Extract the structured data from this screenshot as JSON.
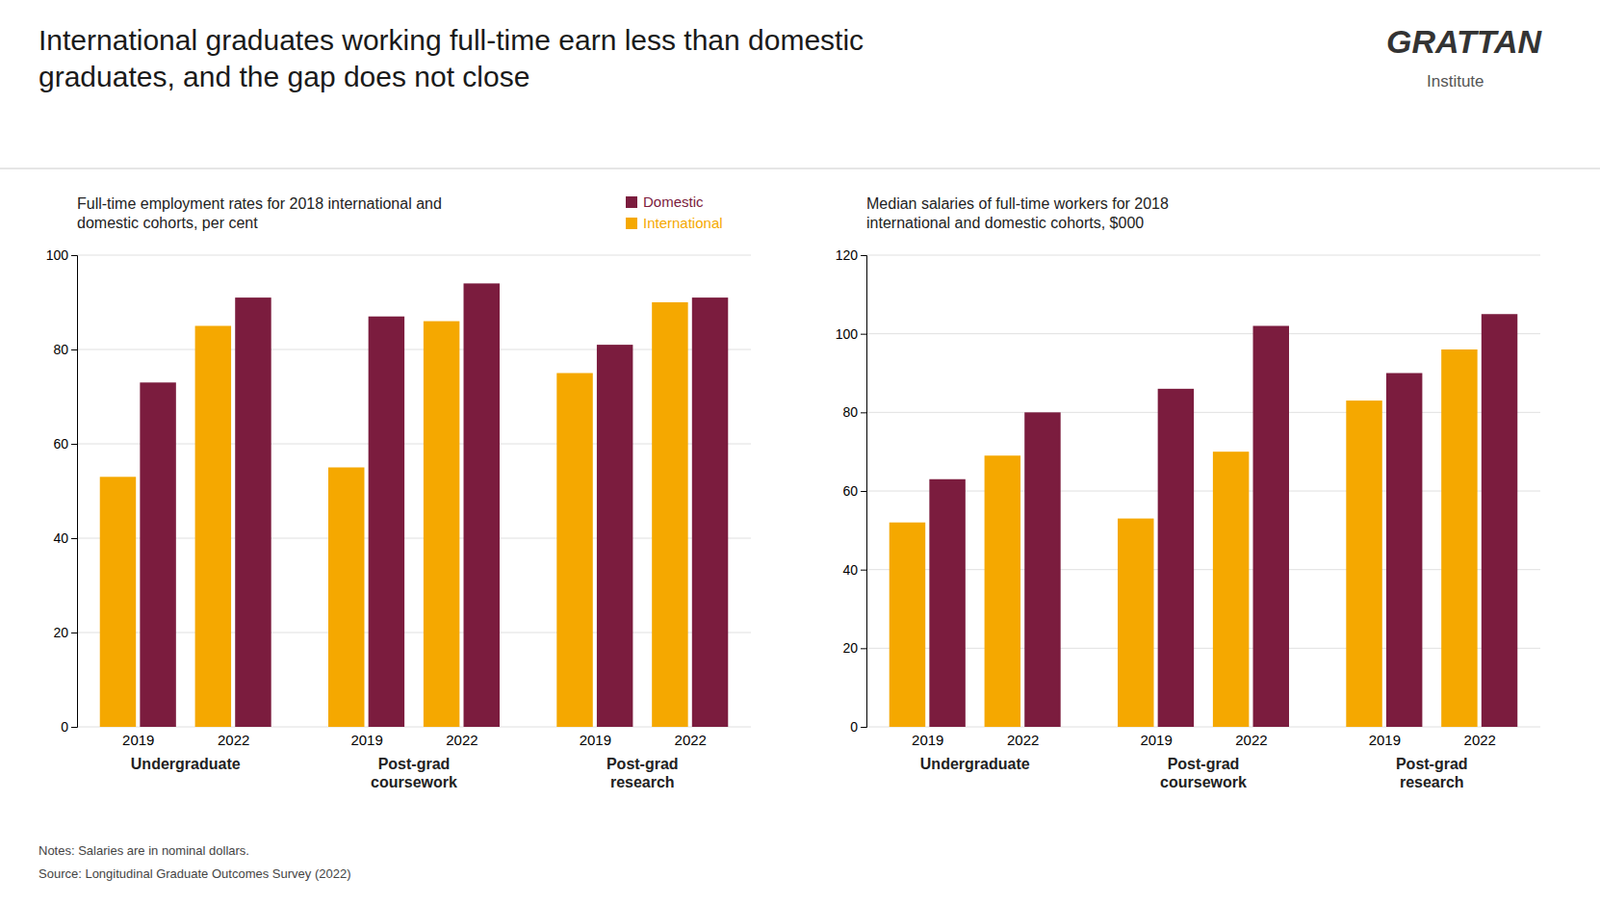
{
  "title": "International graduates working full-time earn less than domestic\ngraduates, and the gap does not close",
  "annotations": [
    "GRATTAN",
    "Institute",
    "Notes: Salaries are in nominal dollars.",
    "Source: Longitudinal Graduate Outcomes Survey (2022)"
  ],
  "chart_data": [
    {
      "type": "bar",
      "title": "Full-time employment rates for 2018 international and\ndomestic cohorts, per cent",
      "groups": [
        "Undergraduate",
        "Post-grad\ncoursework",
        "Post-grad\nresearch"
      ],
      "categories": [
        "2019",
        "2022",
        "2019",
        "2022",
        "2019",
        "2022"
      ],
      "series": [
        {
          "name": "International",
          "color": "#F5A800",
          "values": [
            53,
            85,
            55,
            86,
            75,
            90
          ]
        },
        {
          "name": "Domestic",
          "color": "#7B1C3E",
          "values": [
            73,
            91,
            87,
            94,
            81,
            91
          ]
        }
      ],
      "ylim": [
        0,
        100
      ],
      "yticks": [
        0,
        20,
        40,
        60,
        80,
        100
      ],
      "grid": true,
      "legend": "upper right"
    },
    {
      "type": "bar",
      "title": "Median salaries of full-time workers for 2018\ninternational and domestic cohorts, $000",
      "groups": [
        "Undergraduate",
        "Post-grad\ncoursework",
        "Post-grad\nresearch"
      ],
      "categories": [
        "2019",
        "2022",
        "2019",
        "2022",
        "2019",
        "2022"
      ],
      "series": [
        {
          "color": "#F5A800",
          "values": [
            52,
            69,
            53,
            70,
            83,
            96
          ]
        },
        {
          "color": "#7B1C3E",
          "values": [
            63,
            80,
            86,
            102,
            90,
            105
          ]
        }
      ],
      "ylim": [
        0,
        120
      ],
      "yticks": [
        0,
        20,
        40,
        60,
        80,
        100,
        120
      ],
      "grid": true
    }
  ]
}
